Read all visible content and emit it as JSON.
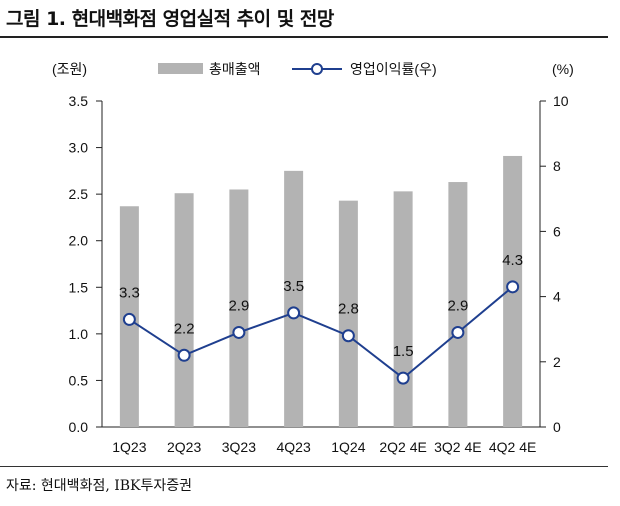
{
  "page": {
    "title": "그림 1. 현대백화점 영업실적 추이 및 전망",
    "source": "자료: 현대백화점, IBK투자증권"
  },
  "chart_data": {
    "type": "bar",
    "title": "",
    "categories": [
      "1Q23",
      "2Q23",
      "3Q23",
      "4Q23",
      "1Q24",
      "2Q24E",
      "3Q24E",
      "4Q24E"
    ],
    "category_display": [
      "1Q23",
      "2Q23",
      "3Q23",
      "4Q23",
      "1Q24",
      "2Q2 4E",
      "3Q2 4E",
      "4Q2 4E"
    ],
    "series": [
      {
        "name": "총매출액",
        "type": "bar",
        "axis": "left",
        "color": "#b3b3b3",
        "values": [
          2.37,
          2.51,
          2.55,
          2.75,
          2.43,
          2.53,
          2.63,
          2.91
        ]
      },
      {
        "name": "영업이익률(우)",
        "type": "line",
        "axis": "right",
        "color": "#1f3f8f",
        "values": [
          3.3,
          2.2,
          2.9,
          3.5,
          2.8,
          1.5,
          2.9,
          4.3
        ],
        "labels": [
          "3.3",
          "2.2",
          "2.9",
          "3.5",
          "2.8",
          "1.5",
          "2.9",
          "4.3"
        ]
      }
    ],
    "y_left": {
      "label": "(조원)",
      "ylim": [
        0,
        3.5
      ],
      "ticks": [
        "0.0",
        "0.5",
        "1.0",
        "1.5",
        "2.0",
        "2.5",
        "3.0",
        "3.5"
      ]
    },
    "y_right": {
      "label": "(%)",
      "ylim": [
        0,
        10
      ],
      "ticks": [
        "0",
        "2",
        "4",
        "6",
        "8",
        "10"
      ]
    },
    "legend": {
      "position": "top-center",
      "items": [
        "총매출액",
        "영업이익률(우)"
      ]
    },
    "grid": false
  }
}
